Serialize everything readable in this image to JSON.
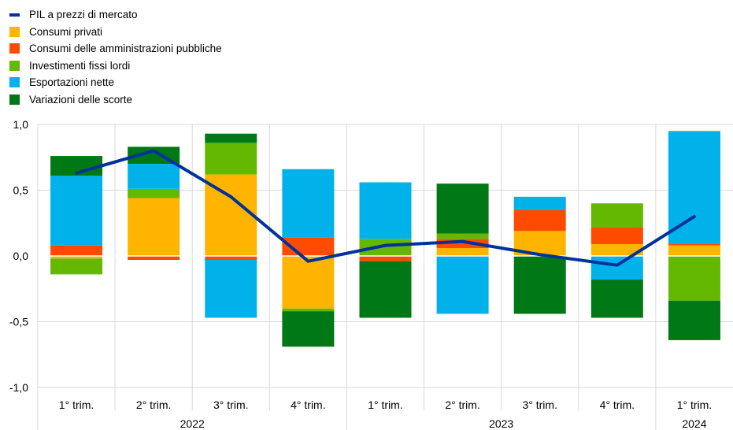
{
  "chart_data": {
    "type": "bar",
    "categories": [
      "1° trim.",
      "2° trim.",
      "3° trim.",
      "4° trim.",
      "1° trim.",
      "2° trim.",
      "3° trim.",
      "4° trim.",
      "1° trim."
    ],
    "years": [
      {
        "label": "2022",
        "span": [
          0,
          3
        ]
      },
      {
        "label": "2023",
        "span": [
          4,
          7
        ]
      },
      {
        "label": "2024",
        "span": [
          8,
          8
        ]
      }
    ],
    "ylim": [
      -1.0,
      1.0
    ],
    "yticks": [
      -1.0,
      -0.5,
      0.0,
      0.5,
      1.0
    ],
    "ytick_labels": [
      "-1,0",
      "-0,5",
      "0,0",
      "0,5",
      "1,0"
    ],
    "grid": true,
    "legend_position": "top-left",
    "series": [
      {
        "name": "Consumi privati",
        "color": "#ffb400",
        "values": [
          -0.02,
          0.44,
          0.62,
          -0.4,
          0.0,
          0.06,
          0.19,
          0.09,
          0.08
        ]
      },
      {
        "name": "Consumi delle amministrazioni pubbliche",
        "color": "#ff4b00",
        "values": [
          0.08,
          -0.03,
          -0.03,
          0.14,
          -0.04,
          0.07,
          0.16,
          0.13,
          0.01
        ]
      },
      {
        "name": "Investimenti fissi lordi",
        "color": "#65b800",
        "values": [
          -0.12,
          0.07,
          0.24,
          -0.02,
          0.13,
          0.04,
          0.0,
          0.18,
          -0.34
        ]
      },
      {
        "name": "Esportazioni nette",
        "color": "#00b1ea",
        "values": [
          0.53,
          0.19,
          -0.44,
          0.52,
          0.43,
          -0.44,
          0.1,
          -0.18,
          0.86
        ]
      },
      {
        "name": "Variazioni delle scorte",
        "color": "#007816",
        "values": [
          0.15,
          0.13,
          0.07,
          -0.27,
          -0.43,
          0.38,
          -0.44,
          -0.29,
          -0.3
        ]
      }
    ],
    "line": {
      "name": "PIL a prezzi di mercato",
      "color": "#003299",
      "values": [
        0.63,
        0.8,
        0.45,
        -0.04,
        0.08,
        0.11,
        0.01,
        -0.07,
        0.3
      ]
    }
  }
}
